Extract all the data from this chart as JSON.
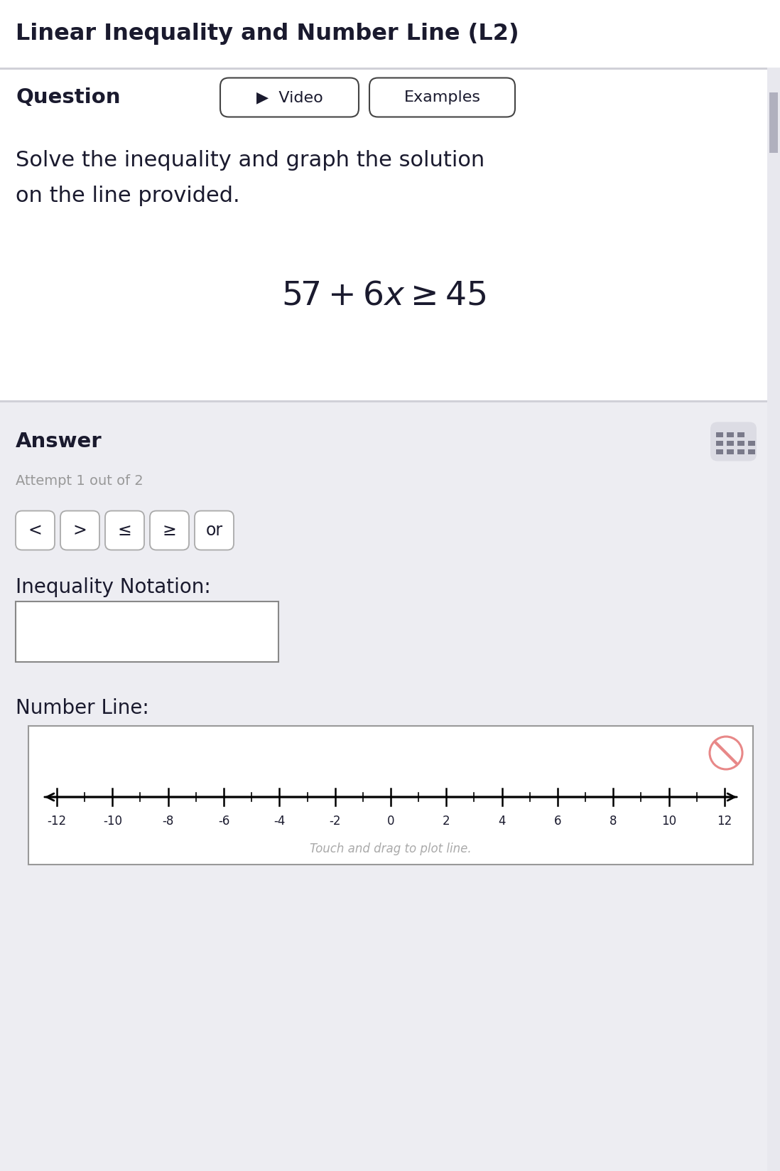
{
  "title": "Linear Inequality and Number Line (L2)",
  "title_fontsize": 23,
  "title_color": "#1a1a2e",
  "header_separator_color": "#d0d0d8",
  "question_label": "Question",
  "question_label_fontsize": 21,
  "video_button_text": "▶  Video",
  "examples_button_text": "Examples",
  "problem_text_line1": "Solve the inequality and graph the solution",
  "problem_text_line2": "on the line provided.",
  "problem_fontsize": 22,
  "equation": "$57 + 6x \\geq 45$",
  "equation_fontsize": 34,
  "answer_section_bg": "#ededf2",
  "answer_label": "Answer",
  "answer_label_fontsize": 21,
  "attempt_text": "Attempt 1 out of 2",
  "attempt_fontsize": 14,
  "attempt_color": "#999999",
  "buttons": [
    "<",
    ">",
    "≤",
    "≥",
    "or"
  ],
  "button_fontsize": 15,
  "inequality_notation_label": "Inequality Notation:",
  "inequality_notation_fontsize": 20,
  "number_line_label": "Number Line:",
  "number_line_fontsize": 20,
  "number_line_min": -12,
  "number_line_max": 12,
  "number_line_step": 2,
  "number_line_caption": "Touch and drag to plot line.",
  "number_line_caption_color": "#aaaaaa",
  "keyboard_icon_bg": "#dcdce4",
  "erase_icon_color": "#e88888",
  "bg_white": "#ffffff",
  "bg_light": "#ededf2",
  "text_dark": "#1a1a2e",
  "scrollbar_bg": "#e8e8ee",
  "scrollbar_thumb": "#b0b0be"
}
